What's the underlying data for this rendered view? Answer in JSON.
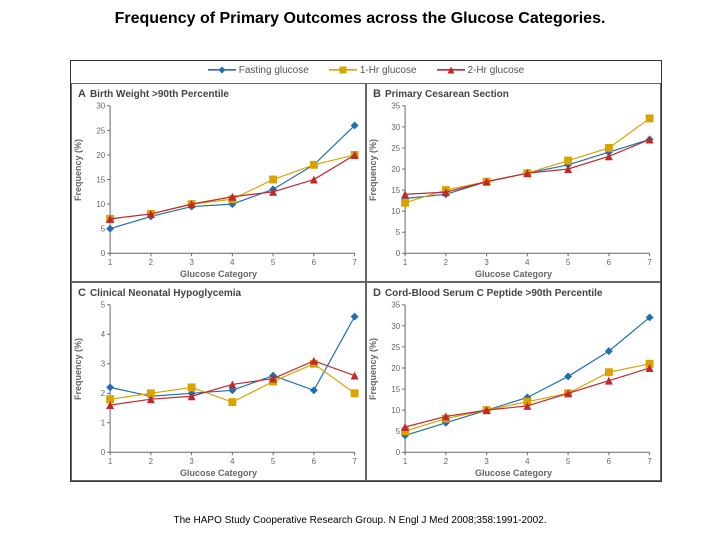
{
  "title": "Frequency of Primary Outcomes across the Glucose Categories.",
  "citation": "The HAPO Study Cooperative Research Group. N Engl J Med 2008;358:1991-2002.",
  "legend": {
    "items": [
      {
        "label": "Fasting glucose",
        "color": "#1f6fb2",
        "marker": "diamond"
      },
      {
        "label": "1-Hr glucose",
        "color": "#d9a400",
        "marker": "square"
      },
      {
        "label": "2-Hr glucose",
        "color": "#c1272d",
        "marker": "triangle"
      }
    ],
    "font_size": 10
  },
  "x_axis": {
    "label": "Glucose Category",
    "ticks": [
      1,
      2,
      3,
      4,
      5,
      6,
      7
    ],
    "label_fontsize": 9
  },
  "y_axis_label": "Frequency (%)",
  "panels": [
    {
      "letter": "A",
      "title": "Birth Weight >90th Percentile",
      "ylim": [
        0,
        30
      ],
      "ytick_step": 5,
      "series": {
        "fasting": [
          5,
          7.5,
          9.5,
          10,
          13,
          18,
          26
        ],
        "one_hr": [
          7,
          8,
          10,
          11,
          15,
          18,
          20
        ],
        "two_hr": [
          7,
          8,
          10,
          11.5,
          12.5,
          15,
          20
        ]
      }
    },
    {
      "letter": "B",
      "title": "Primary Cesarean Section",
      "ylim": [
        0,
        35
      ],
      "ytick_step": 5,
      "series": {
        "fasting": [
          13,
          14,
          17,
          19,
          21,
          24,
          27
        ],
        "one_hr": [
          12,
          15,
          17,
          19,
          22,
          25,
          32
        ],
        "two_hr": [
          14,
          14.5,
          17,
          19,
          20,
          23,
          27
        ]
      }
    },
    {
      "letter": "C",
      "title": "Clinical Neonatal Hypoglycemia",
      "ylim": [
        0,
        5
      ],
      "ytick_step": 1,
      "series": {
        "fasting": [
          2.2,
          1.9,
          2.0,
          2.1,
          2.6,
          2.1,
          4.6
        ],
        "one_hr": [
          1.8,
          2.0,
          2.2,
          1.7,
          2.4,
          3.0,
          2.0
        ],
        "two_hr": [
          1.6,
          1.8,
          1.9,
          2.3,
          2.5,
          3.1,
          2.6
        ]
      }
    },
    {
      "letter": "D",
      "title": "Cord-Blood Serum C Peptide >90th Percentile",
      "ylim": [
        0,
        35
      ],
      "ytick_step": 5,
      "series": {
        "fasting": [
          4,
          7,
          10,
          13,
          18,
          24,
          32
        ],
        "one_hr": [
          5,
          8,
          10,
          12,
          14,
          19,
          21
        ],
        "two_hr": [
          6,
          8.5,
          10,
          11,
          14,
          17,
          20
        ]
      }
    }
  ],
  "colors": {
    "fasting": "#1f6fb2",
    "one_hr": "#d9a400",
    "two_hr": "#c1272d",
    "axis": "#666666",
    "grid": "#bbbbbb",
    "panel_border": "#666666",
    "background": "#ffffff"
  },
  "marker_size": 4,
  "line_width": 1.2
}
